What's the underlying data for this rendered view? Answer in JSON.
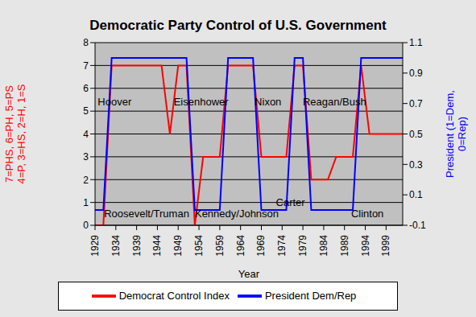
{
  "chart_data": {
    "type": "line",
    "title": "Democratic Party Control of U.S. Government",
    "x_label": "Year",
    "y_label": [
      "7=PHS, 6=PH, 5=PS",
      "4=P, 3=HS, 2=H, 1=S"
    ],
    "y2_label": [
      "President (1=Dem,",
      "0=Rep)"
    ],
    "x": [
      1929,
      1931,
      1933,
      1935,
      1937,
      1939,
      1941,
      1943,
      1945,
      1947,
      1949,
      1951,
      1953,
      1955,
      1957,
      1959,
      1961,
      1963,
      1965,
      1967,
      1969,
      1971,
      1973,
      1975,
      1977,
      1979,
      1981,
      1983,
      1985,
      1987,
      1989,
      1991,
      1993,
      1995,
      1997,
      1999,
      2001,
      2003
    ],
    "series": [
      {
        "name": "Democrat Control Index",
        "color": "#ff0000",
        "values": [
          0,
          0,
          7,
          7,
          7,
          7,
          7,
          7,
          7,
          4,
          7,
          7,
          0,
          3,
          3,
          3,
          7,
          7,
          7,
          7,
          3,
          3,
          3,
          3,
          7,
          7,
          2,
          2,
          2,
          3,
          3,
          3,
          7,
          4,
          4,
          4,
          4,
          4
        ]
      },
      {
        "name": "President Dem/Rep",
        "color": "#0000ff",
        "axis": "y2",
        "values": [
          0,
          0,
          1,
          1,
          1,
          1,
          1,
          1,
          1,
          1,
          1,
          1,
          0,
          0,
          0,
          0,
          1,
          1,
          1,
          1,
          0,
          0,
          0,
          0,
          1,
          1,
          0,
          0,
          0,
          0,
          0,
          0,
          1,
          1,
          1,
          1,
          1,
          1
        ]
      }
    ],
    "xlim": [
      1929,
      2003
    ],
    "xticks": [
      1929,
      1934,
      1939,
      1944,
      1949,
      1954,
      1959,
      1964,
      1969,
      1974,
      1979,
      1984,
      1989,
      1994,
      1999
    ],
    "ylim": [
      0,
      8
    ],
    "yticks": [
      0,
      1,
      2,
      3,
      4,
      5,
      6,
      7,
      8
    ],
    "y2lim": [
      -0.1,
      1.1
    ],
    "y2ticks": [
      -0.1,
      0.1,
      0.3,
      0.5,
      0.7,
      0.9,
      1.1
    ],
    "grid": true,
    "legend": "bottom",
    "annotations": [
      {
        "text": "Hoover",
        "x": 1933.7,
        "y": 5.4
      },
      {
        "text": "Eisenhower",
        "x": 1954.5,
        "y": 5.4
      },
      {
        "text": "Nixon",
        "x": 1970.6,
        "y": 5.4
      },
      {
        "text": "Reagan/Bush",
        "x": 1986.6,
        "y": 5.4
      },
      {
        "text": "Roosevelt/Truman",
        "x": 1941.4,
        "y": 0.5
      },
      {
        "text": "Kennedy/Johnson",
        "x": 1963.1,
        "y": 0.5
      },
      {
        "text": "Carter",
        "x": 1976,
        "y": 1.0
      },
      {
        "text": "Clinton",
        "x": 1994.5,
        "y": 0.5
      }
    ]
  }
}
